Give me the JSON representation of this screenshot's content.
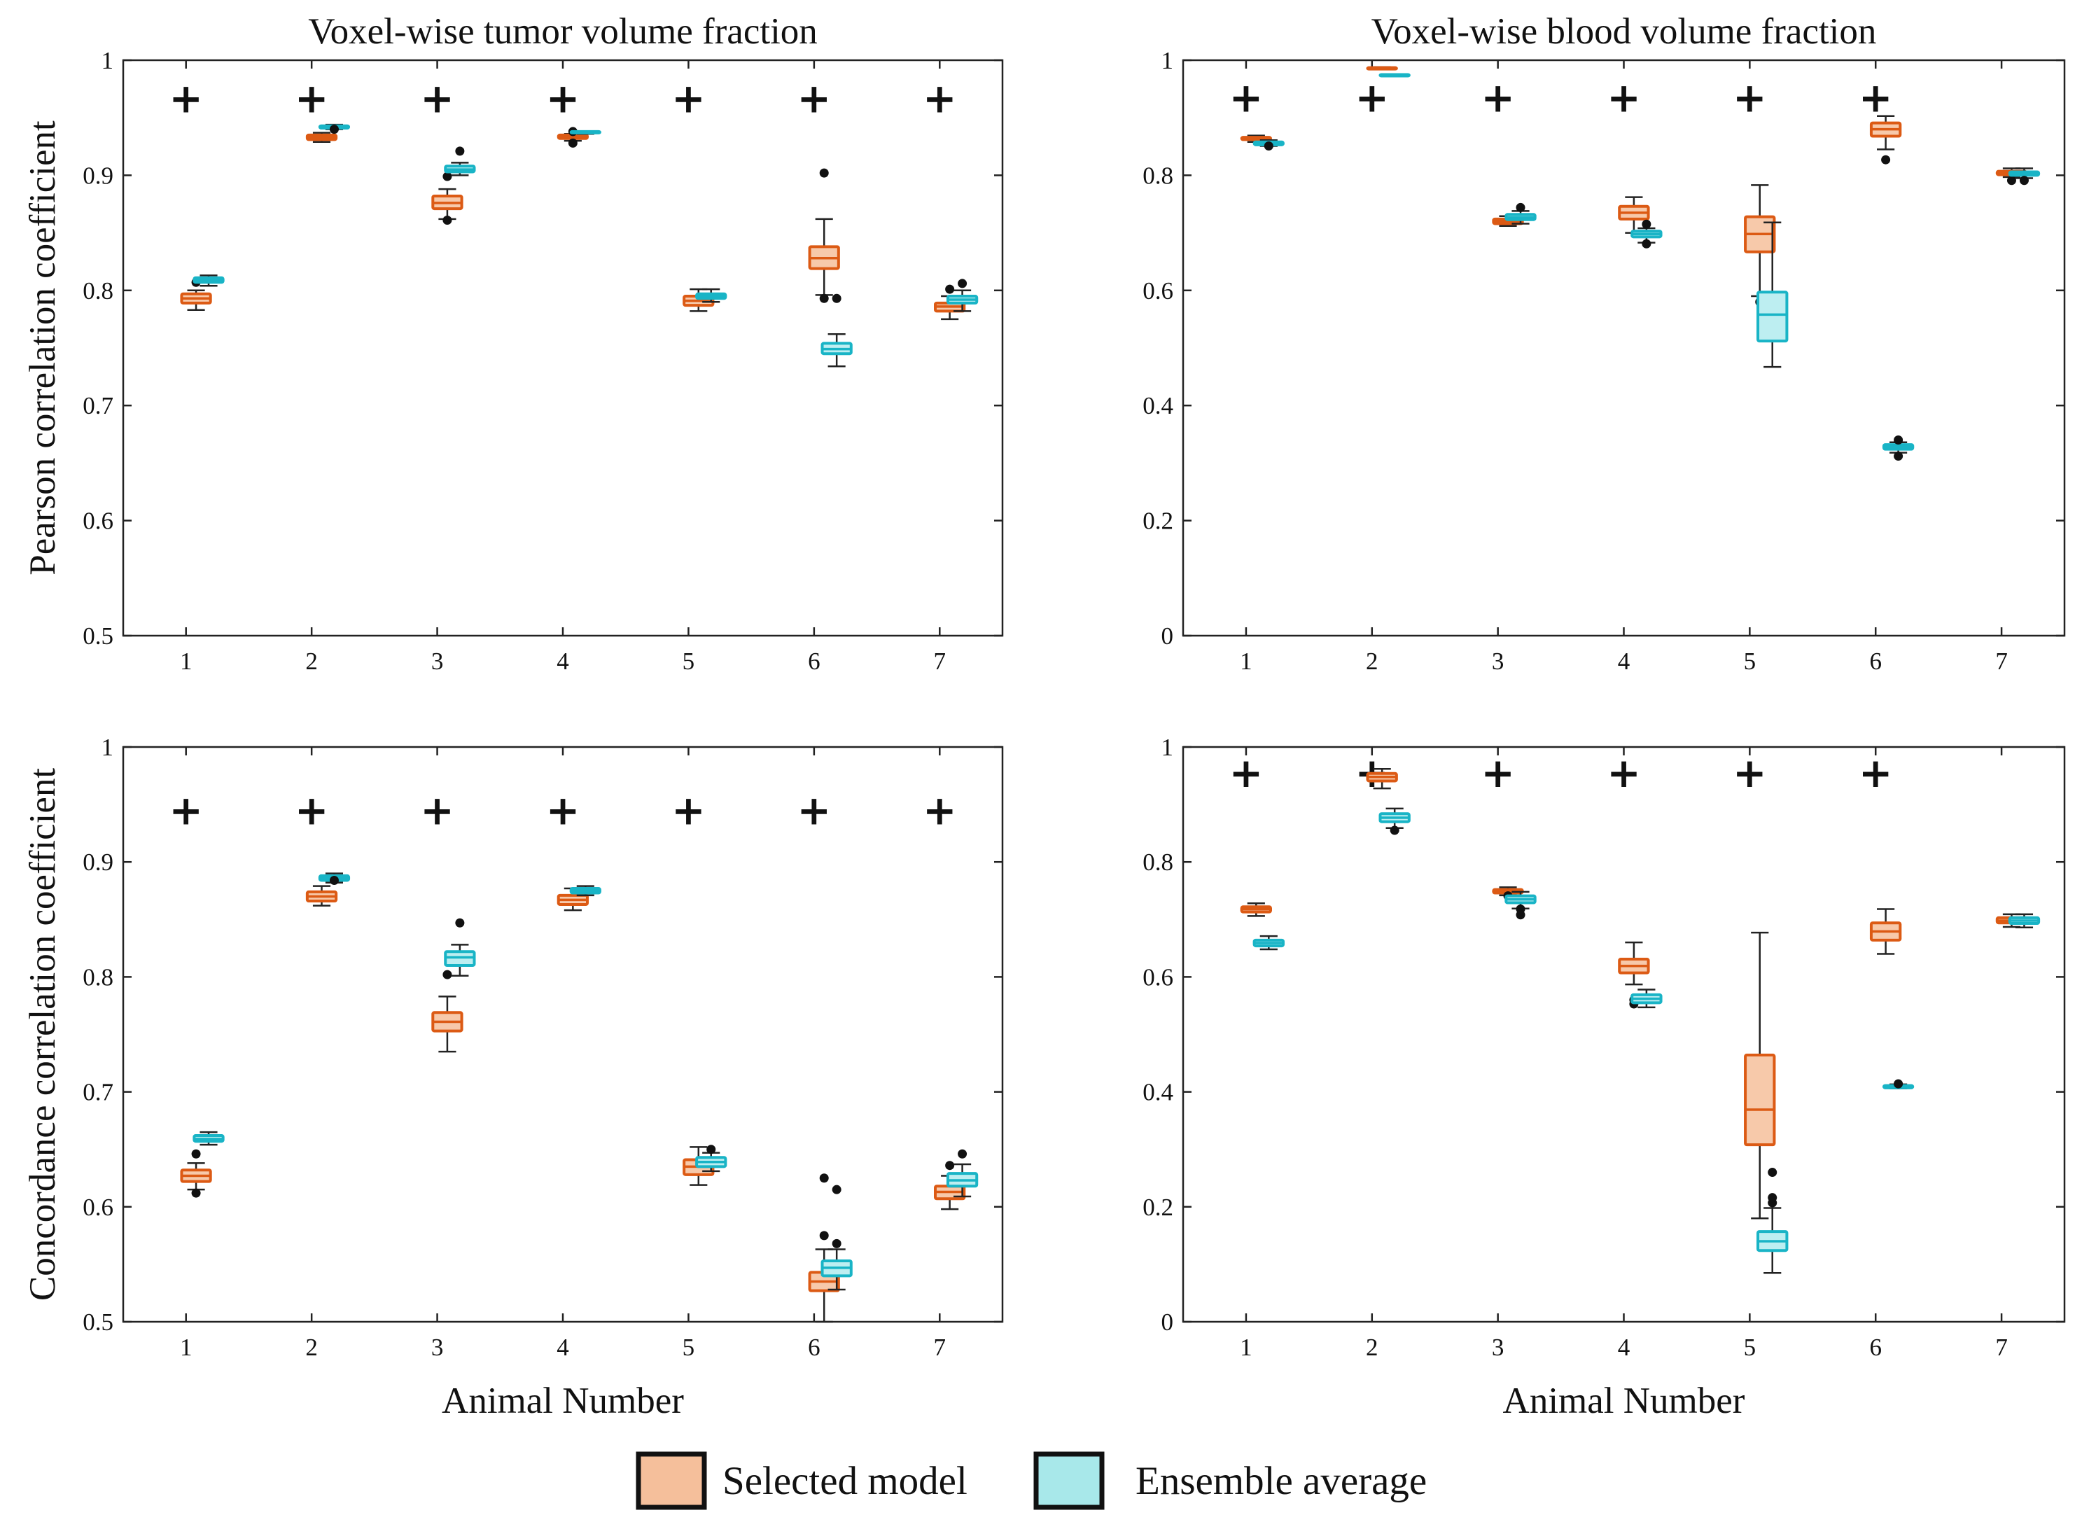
{
  "figure": {
    "xlabel": "Animal Number",
    "legend": {
      "placement": "bottom-center",
      "items": [
        {
          "label": "Selected model",
          "fill": "#f5bf9b",
          "edge": "#111111"
        },
        {
          "label": "Ensemble average",
          "fill": "#a8e8ea",
          "edge": "#111111"
        }
      ]
    }
  },
  "colors": {
    "selected_edge": "#dc5a14",
    "selected_fill": "#f7c9aa",
    "ensemble_edge": "#19b4c6",
    "ensemble_fill": "#bdeef1",
    "marker": "#111111"
  },
  "chart_data": [
    {
      "type": "box",
      "title": "Voxel-wise tumor volume fraction",
      "ylabel": "Pearson correlation coefficient",
      "xlabel": "",
      "categories": [
        "1",
        "2",
        "3",
        "4",
        "5",
        "6",
        "7"
      ],
      "ylim": [
        0.5,
        1
      ],
      "yticks": [
        "0.5",
        "0.6",
        "0.7",
        "0.8",
        "0.9",
        "1"
      ],
      "grid": false,
      "significance_markers": {
        "symbol": "+",
        "y": 0.967,
        "categories": [
          "1",
          "2",
          "3",
          "4",
          "5",
          "6",
          "7"
        ]
      },
      "series": [
        {
          "name": "Selected model",
          "boxes": [
            {
              "whislo": 0.783,
              "q1": 0.789,
              "med": 0.793,
              "q3": 0.797,
              "whishi": 0.8,
              "fliers": [
                0.807
              ]
            },
            {
              "whislo": 0.929,
              "q1": 0.931,
              "med": 0.933,
              "q3": 0.935,
              "whishi": 0.937,
              "fliers": []
            },
            {
              "whislo": 0.862,
              "q1": 0.871,
              "med": 0.876,
              "q3": 0.882,
              "whishi": 0.888,
              "fliers": [
                0.899,
                0.861
              ]
            },
            {
              "whislo": 0.93,
              "q1": 0.932,
              "med": 0.933,
              "q3": 0.935,
              "whishi": 0.936,
              "fliers": [
                0.938,
                0.928
              ]
            },
            {
              "whislo": 0.782,
              "q1": 0.787,
              "med": 0.791,
              "q3": 0.795,
              "whishi": 0.801,
              "fliers": []
            },
            {
              "whislo": 0.796,
              "q1": 0.819,
              "med": 0.828,
              "q3": 0.838,
              "whishi": 0.862,
              "fliers": [
                0.902,
                0.793
              ]
            },
            {
              "whislo": 0.775,
              "q1": 0.782,
              "med": 0.786,
              "q3": 0.789,
              "whishi": 0.795,
              "fliers": [
                0.801
              ]
            }
          ]
        },
        {
          "name": "Ensemble average",
          "boxes": [
            {
              "whislo": 0.804,
              "q1": 0.807,
              "med": 0.809,
              "q3": 0.811,
              "whishi": 0.813,
              "fliers": []
            },
            {
              "whislo": 0.94,
              "q1": 0.941,
              "med": 0.942,
              "q3": 0.943,
              "whishi": 0.944,
              "fliers": [
                0.94
              ]
            },
            {
              "whislo": 0.9,
              "q1": 0.903,
              "med": 0.905,
              "q3": 0.908,
              "whishi": 0.911,
              "fliers": [
                0.921
              ]
            },
            {
              "whislo": 0.936,
              "q1": 0.937,
              "med": 0.937,
              "q3": 0.938,
              "whishi": 0.938,
              "fliers": []
            },
            {
              "whislo": 0.79,
              "q1": 0.793,
              "med": 0.795,
              "q3": 0.797,
              "whishi": 0.801,
              "fliers": []
            },
            {
              "whislo": 0.734,
              "q1": 0.745,
              "med": 0.749,
              "q3": 0.754,
              "whishi": 0.762,
              "fliers": [
                0.793
              ]
            },
            {
              "whislo": 0.782,
              "q1": 0.789,
              "med": 0.792,
              "q3": 0.795,
              "whishi": 0.8,
              "fliers": [
                0.806
              ]
            }
          ]
        }
      ]
    },
    {
      "type": "box",
      "title": "Voxel-wise blood volume fraction",
      "ylabel": "",
      "xlabel": "",
      "categories": [
        "1",
        "2",
        "3",
        "4",
        "5",
        "6",
        "7"
      ],
      "ylim": [
        0,
        1
      ],
      "yticks": [
        "0",
        "0.2",
        "0.4",
        "0.6",
        "0.8",
        "1"
      ],
      "grid": false,
      "significance_markers": {
        "symbol": "+",
        "y": 0.935,
        "categories": [
          "1",
          "2",
          "3",
          "4",
          "5",
          "6"
        ]
      },
      "series": [
        {
          "name": "Selected model",
          "boxes": [
            {
              "whislo": 0.858,
              "q1": 0.862,
              "med": 0.864,
              "q3": 0.866,
              "whishi": 0.869,
              "fliers": []
            },
            {
              "whislo": 0.984,
              "q1": 0.985,
              "med": 0.986,
              "q3": 0.987,
              "whishi": 0.988,
              "fliers": []
            },
            {
              "whislo": 0.712,
              "q1": 0.716,
              "med": 0.72,
              "q3": 0.724,
              "whishi": 0.729,
              "fliers": []
            },
            {
              "whislo": 0.7,
              "q1": 0.724,
              "med": 0.735,
              "q3": 0.746,
              "whishi": 0.762,
              "fliers": []
            },
            {
              "whislo": 0.59,
              "q1": 0.667,
              "med": 0.698,
              "q3": 0.728,
              "whishi": 0.783,
              "fliers": [
                0.58
              ]
            },
            {
              "whislo": 0.845,
              "q1": 0.868,
              "med": 0.88,
              "q3": 0.891,
              "whishi": 0.903,
              "fliers": [
                0.827
              ]
            },
            {
              "whislo": 0.797,
              "q1": 0.801,
              "med": 0.804,
              "q3": 0.807,
              "whishi": 0.812,
              "fliers": [
                0.791
              ]
            }
          ]
        },
        {
          "name": "Ensemble average",
          "boxes": [
            {
              "whislo": 0.851,
              "q1": 0.853,
              "med": 0.855,
              "q3": 0.858,
              "whishi": 0.861,
              "fliers": [
                0.851
              ]
            },
            {
              "whislo": 0.972,
              "q1": 0.973,
              "med": 0.974,
              "q3": 0.975,
              "whishi": 0.976,
              "fliers": []
            },
            {
              "whislo": 0.716,
              "q1": 0.723,
              "med": 0.727,
              "q3": 0.732,
              "whishi": 0.738,
              "fliers": [
                0.744
              ]
            },
            {
              "whislo": 0.683,
              "q1": 0.693,
              "med": 0.698,
              "q3": 0.703,
              "whishi": 0.708,
              "fliers": [
                0.715,
                0.681
              ]
            },
            {
              "whislo": 0.467,
              "q1": 0.512,
              "med": 0.558,
              "q3": 0.597,
              "whishi": 0.718,
              "fliers": []
            },
            {
              "whislo": 0.318,
              "q1": 0.324,
              "med": 0.328,
              "q3": 0.332,
              "whishi": 0.336,
              "fliers": [
                0.34,
                0.312
              ]
            },
            {
              "whislo": 0.795,
              "q1": 0.8,
              "med": 0.803,
              "q3": 0.806,
              "whishi": 0.812,
              "fliers": [
                0.791
              ]
            }
          ]
        }
      ]
    },
    {
      "type": "box",
      "title": "",
      "ylabel": "Concordance correlation coefficient",
      "xlabel": "Animal Number",
      "categories": [
        "1",
        "2",
        "3",
        "4",
        "5",
        "6",
        "7"
      ],
      "ylim": [
        0.5,
        1
      ],
      "yticks": [
        "0.5",
        "0.6",
        "0.7",
        "0.8",
        "0.9",
        "1"
      ],
      "grid": false,
      "significance_markers": {
        "symbol": "+",
        "y": 0.945,
        "categories": [
          "1",
          "2",
          "3",
          "4",
          "5",
          "6",
          "7"
        ]
      },
      "series": [
        {
          "name": "Selected model",
          "boxes": [
            {
              "whislo": 0.615,
              "q1": 0.622,
              "med": 0.627,
              "q3": 0.632,
              "whishi": 0.638,
              "fliers": [
                0.646,
                0.612
              ]
            },
            {
              "whislo": 0.862,
              "q1": 0.866,
              "med": 0.87,
              "q3": 0.874,
              "whishi": 0.879,
              "fliers": []
            },
            {
              "whislo": 0.735,
              "q1": 0.753,
              "med": 0.761,
              "q3": 0.769,
              "whishi": 0.783,
              "fliers": [
                0.802
              ]
            },
            {
              "whislo": 0.858,
              "q1": 0.863,
              "med": 0.867,
              "q3": 0.871,
              "whishi": 0.877,
              "fliers": []
            },
            {
              "whislo": 0.619,
              "q1": 0.628,
              "med": 0.635,
              "q3": 0.641,
              "whishi": 0.652,
              "fliers": []
            },
            {
              "whislo": 0.5,
              "q1": 0.527,
              "med": 0.535,
              "q3": 0.543,
              "whishi": 0.563,
              "fliers": [
                0.575,
                0.625
              ]
            },
            {
              "whislo": 0.598,
              "q1": 0.607,
              "med": 0.613,
              "q3": 0.618,
              "whishi": 0.627,
              "fliers": [
                0.636
              ]
            }
          ]
        },
        {
          "name": "Ensemble average",
          "boxes": [
            {
              "whislo": 0.654,
              "q1": 0.657,
              "med": 0.659,
              "q3": 0.662,
              "whishi": 0.665,
              "fliers": []
            },
            {
              "whislo": 0.882,
              "q1": 0.884,
              "med": 0.886,
              "q3": 0.888,
              "whishi": 0.89,
              "fliers": [
                0.884
              ]
            },
            {
              "whislo": 0.801,
              "q1": 0.81,
              "med": 0.817,
              "q3": 0.822,
              "whishi": 0.828,
              "fliers": [
                0.847
              ]
            },
            {
              "whislo": 0.871,
              "q1": 0.873,
              "med": 0.875,
              "q3": 0.877,
              "whishi": 0.879,
              "fliers": []
            },
            {
              "whislo": 0.631,
              "q1": 0.635,
              "med": 0.639,
              "q3": 0.643,
              "whishi": 0.647,
              "fliers": [
                0.65
              ]
            },
            {
              "whislo": 0.528,
              "q1": 0.54,
              "med": 0.547,
              "q3": 0.553,
              "whishi": 0.563,
              "fliers": [
                0.568,
                0.615
              ]
            },
            {
              "whislo": 0.609,
              "q1": 0.618,
              "med": 0.623,
              "q3": 0.629,
              "whishi": 0.637,
              "fliers": [
                0.646
              ]
            }
          ]
        }
      ]
    },
    {
      "type": "box",
      "title": "",
      "ylabel": "",
      "xlabel": "Animal Number",
      "categories": [
        "1",
        "2",
        "3",
        "4",
        "5",
        "6",
        "7"
      ],
      "ylim": [
        0,
        1
      ],
      "yticks": [
        "0",
        "0.2",
        "0.4",
        "0.6",
        "0.8",
        "1"
      ],
      "grid": false,
      "significance_markers": {
        "symbol": "+",
        "y": 0.955,
        "categories": [
          "1",
          "2",
          "3",
          "4",
          "5",
          "6"
        ]
      },
      "series": [
        {
          "name": "Selected model",
          "boxes": [
            {
              "whislo": 0.706,
              "q1": 0.713,
              "med": 0.718,
              "q3": 0.722,
              "whishi": 0.728,
              "fliers": []
            },
            {
              "whislo": 0.928,
              "q1": 0.941,
              "med": 0.948,
              "q3": 0.954,
              "whishi": 0.962,
              "fliers": []
            },
            {
              "whislo": 0.742,
              "q1": 0.746,
              "med": 0.749,
              "q3": 0.752,
              "whishi": 0.756,
              "fliers": [
                0.741
              ]
            },
            {
              "whislo": 0.587,
              "q1": 0.607,
              "med": 0.619,
              "q3": 0.631,
              "whishi": 0.66,
              "fliers": [
                0.56,
                0.553
              ]
            },
            {
              "whislo": 0.18,
              "q1": 0.308,
              "med": 0.369,
              "q3": 0.464,
              "whishi": 0.677,
              "fliers": []
            },
            {
              "whislo": 0.64,
              "q1": 0.664,
              "med": 0.679,
              "q3": 0.694,
              "whishi": 0.718,
              "fliers": []
            },
            {
              "whislo": 0.687,
              "q1": 0.694,
              "med": 0.698,
              "q3": 0.703,
              "whishi": 0.709,
              "fliers": []
            }
          ]
        },
        {
          "name": "Ensemble average",
          "boxes": [
            {
              "whislo": 0.648,
              "q1": 0.654,
              "med": 0.659,
              "q3": 0.664,
              "whishi": 0.671,
              "fliers": []
            },
            {
              "whislo": 0.859,
              "q1": 0.87,
              "med": 0.877,
              "q3": 0.884,
              "whishi": 0.893,
              "fliers": [
                0.855
              ]
            },
            {
              "whislo": 0.719,
              "q1": 0.729,
              "med": 0.735,
              "q3": 0.741,
              "whishi": 0.748,
              "fliers": [
                0.718,
                0.708
              ]
            },
            {
              "whislo": 0.547,
              "q1": 0.555,
              "med": 0.562,
              "q3": 0.569,
              "whishi": 0.578,
              "fliers": []
            },
            {
              "whislo": 0.085,
              "q1": 0.124,
              "med": 0.14,
              "q3": 0.157,
              "whishi": 0.198,
              "fliers": [
                0.207,
                0.216,
                0.26
              ]
            },
            {
              "whislo": 0.406,
              "q1": 0.407,
              "med": 0.409,
              "q3": 0.411,
              "whishi": 0.413,
              "fliers": [
                0.414
              ]
            },
            {
              "whislo": 0.686,
              "q1": 0.693,
              "med": 0.698,
              "q3": 0.703,
              "whishi": 0.709,
              "fliers": []
            }
          ]
        }
      ]
    }
  ]
}
